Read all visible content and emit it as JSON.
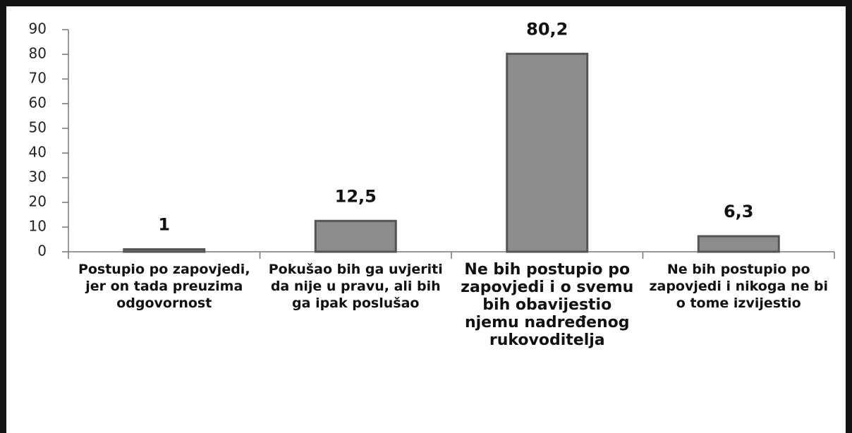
{
  "chart_data": {
    "type": "bar",
    "categories": [
      "Postupio po zapovjedi, jer on tada preuzima odgovornost",
      "Pokušao bih ga uvjeriti da nije u pravu, ali bih ga ipak poslušao",
      "Ne bih postupio po zapovjedi i o svemu bih obavijestio njemu nadređenog rukovoditelja",
      "Ne bih postupio po zapovjedi i nikoga ne bi o tome izvijestio"
    ],
    "values": [
      1,
      12.5,
      80.2,
      6.3
    ],
    "value_labels": [
      "1",
      "12,5",
      "80,2",
      "6,3"
    ],
    "color": "#8c8c8c",
    "ylim": [
      0,
      90
    ],
    "yticks": [
      0,
      10,
      20,
      30,
      40,
      50,
      60,
      70,
      80,
      90
    ],
    "grid": false
  }
}
